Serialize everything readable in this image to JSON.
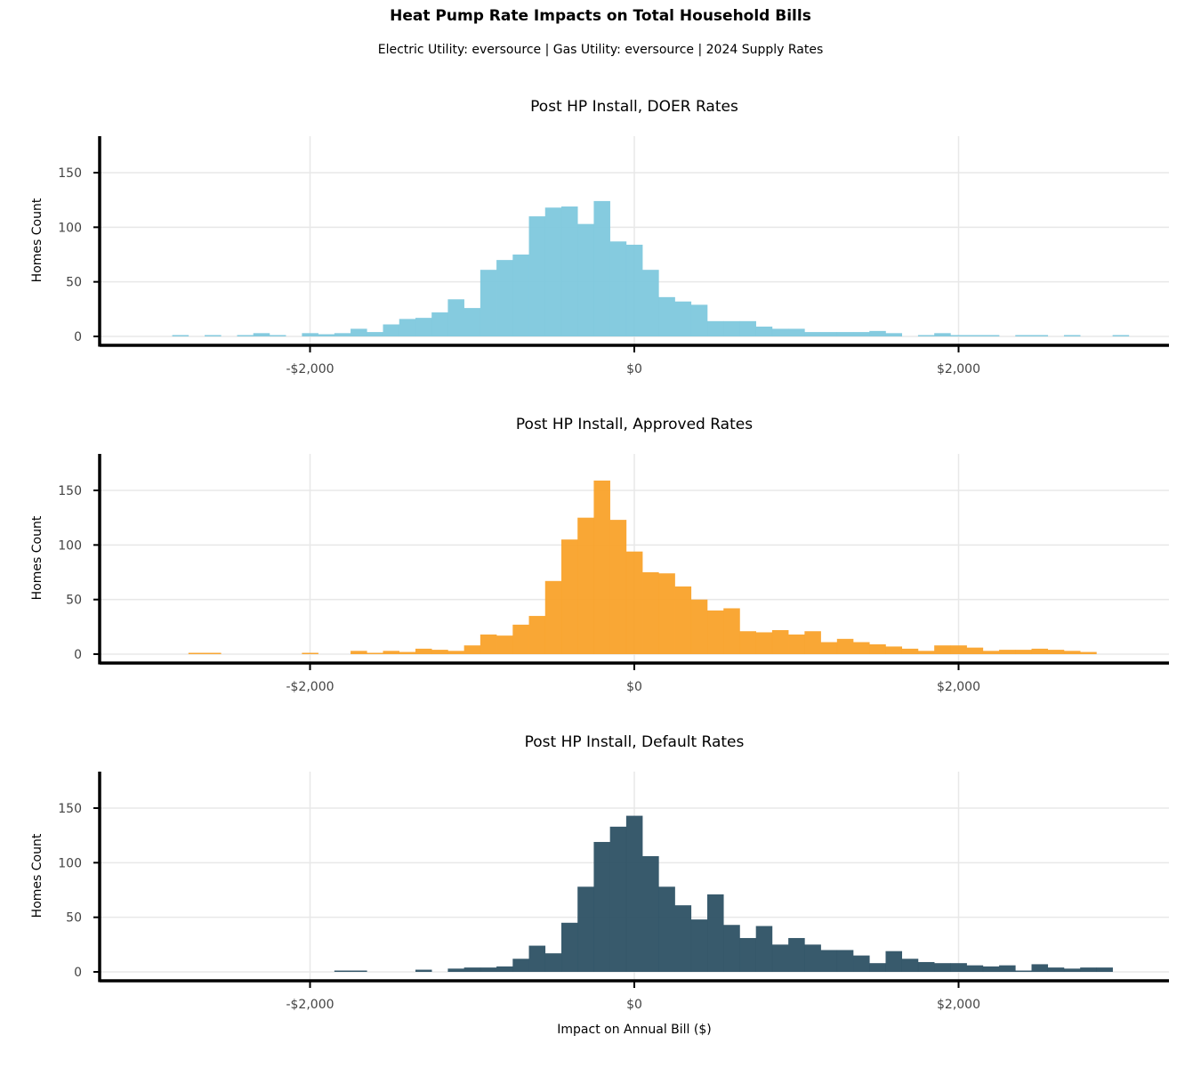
{
  "title": "Heat Pump Rate Impacts on Total Household Bills",
  "subtitle": "Electric Utility: eversource | Gas Utility: eversource | 2024 Supply Rates",
  "chart_data": {
    "type": "bar",
    "subtype": "histogram",
    "bin_width": 100,
    "xlabel": "Impact on Annual Bill ($)",
    "ylabel": "Homes Count",
    "xlim": [
      -3300,
      3300
    ],
    "ylim": [
      -8,
      182
    ],
    "x_ticks": [
      -2000,
      0,
      2000
    ],
    "x_tick_labels": [
      "-$2,000",
      "$0",
      "$2,000"
    ],
    "y_ticks": [
      0,
      50,
      100,
      150
    ],
    "y_tick_labels": [
      "0",
      "50",
      "100",
      "150"
    ],
    "panels": [
      {
        "name": "Post HP Install, DOER Rates",
        "color": "#7EC8DD",
        "series": [
          {
            "x": -2900,
            "y": 0
          },
          {
            "x": -2800,
            "y": 1
          },
          {
            "x": -2700,
            "y": 0
          },
          {
            "x": -2600,
            "y": 1
          },
          {
            "x": -2500,
            "y": 0
          },
          {
            "x": -2400,
            "y": 1
          },
          {
            "x": -2300,
            "y": 3
          },
          {
            "x": -2200,
            "y": 1
          },
          {
            "x": -2100,
            "y": 0
          },
          {
            "x": -2000,
            "y": 3
          },
          {
            "x": -1900,
            "y": 2
          },
          {
            "x": -1800,
            "y": 3
          },
          {
            "x": -1700,
            "y": 7
          },
          {
            "x": -1600,
            "y": 4
          },
          {
            "x": -1500,
            "y": 11
          },
          {
            "x": -1400,
            "y": 16
          },
          {
            "x": -1300,
            "y": 17
          },
          {
            "x": -1200,
            "y": 22
          },
          {
            "x": -1100,
            "y": 34
          },
          {
            "x": -1000,
            "y": 26
          },
          {
            "x": -900,
            "y": 61
          },
          {
            "x": -800,
            "y": 70
          },
          {
            "x": -700,
            "y": 75
          },
          {
            "x": -600,
            "y": 110
          },
          {
            "x": -500,
            "y": 118
          },
          {
            "x": -400,
            "y": 119
          },
          {
            "x": -300,
            "y": 103
          },
          {
            "x": -200,
            "y": 124
          },
          {
            "x": -100,
            "y": 87
          },
          {
            "x": 0,
            "y": 84
          },
          {
            "x": 100,
            "y": 61
          },
          {
            "x": 200,
            "y": 36
          },
          {
            "x": 300,
            "y": 32
          },
          {
            "x": 400,
            "y": 29
          },
          {
            "x": 500,
            "y": 14
          },
          {
            "x": 600,
            "y": 14
          },
          {
            "x": 700,
            "y": 14
          },
          {
            "x": 800,
            "y": 9
          },
          {
            "x": 900,
            "y": 7
          },
          {
            "x": 1000,
            "y": 7
          },
          {
            "x": 1100,
            "y": 4
          },
          {
            "x": 1200,
            "y": 4
          },
          {
            "x": 1300,
            "y": 4
          },
          {
            "x": 1400,
            "y": 4
          },
          {
            "x": 1500,
            "y": 5
          },
          {
            "x": 1600,
            "y": 3
          },
          {
            "x": 1700,
            "y": 0
          },
          {
            "x": 1800,
            "y": 1
          },
          {
            "x": 1900,
            "y": 3
          },
          {
            "x": 2000,
            "y": 1
          },
          {
            "x": 2100,
            "y": 1
          },
          {
            "x": 2200,
            "y": 1
          },
          {
            "x": 2300,
            "y": 0
          },
          {
            "x": 2400,
            "y": 1
          },
          {
            "x": 2500,
            "y": 1
          },
          {
            "x": 2600,
            "y": 0
          },
          {
            "x": 2700,
            "y": 1
          },
          {
            "x": 2800,
            "y": 0
          },
          {
            "x": 2900,
            "y": 0
          },
          {
            "x": 3000,
            "y": 1
          }
        ]
      },
      {
        "name": "Post HP Install, Approved Rates",
        "color": "#F9A22A",
        "series": [
          {
            "x": -2700,
            "y": 1
          },
          {
            "x": -2600,
            "y": 1
          },
          {
            "x": -2000,
            "y": 1
          },
          {
            "x": -1700,
            "y": 3
          },
          {
            "x": -1600,
            "y": 1
          },
          {
            "x": -1500,
            "y": 3
          },
          {
            "x": -1400,
            "y": 2
          },
          {
            "x": -1300,
            "y": 5
          },
          {
            "x": -1200,
            "y": 4
          },
          {
            "x": -1100,
            "y": 3
          },
          {
            "x": -1000,
            "y": 8
          },
          {
            "x": -900,
            "y": 18
          },
          {
            "x": -800,
            "y": 17
          },
          {
            "x": -700,
            "y": 27
          },
          {
            "x": -600,
            "y": 35
          },
          {
            "x": -500,
            "y": 67
          },
          {
            "x": -400,
            "y": 105
          },
          {
            "x": -300,
            "y": 125
          },
          {
            "x": -200,
            "y": 159
          },
          {
            "x": -100,
            "y": 123
          },
          {
            "x": 0,
            "y": 94
          },
          {
            "x": 100,
            "y": 75
          },
          {
            "x": 200,
            "y": 74
          },
          {
            "x": 300,
            "y": 62
          },
          {
            "x": 400,
            "y": 50
          },
          {
            "x": 500,
            "y": 40
          },
          {
            "x": 600,
            "y": 42
          },
          {
            "x": 700,
            "y": 21
          },
          {
            "x": 800,
            "y": 20
          },
          {
            "x": 900,
            "y": 22
          },
          {
            "x": 1000,
            "y": 18
          },
          {
            "x": 1100,
            "y": 21
          },
          {
            "x": 1200,
            "y": 11
          },
          {
            "x": 1300,
            "y": 14
          },
          {
            "x": 1400,
            "y": 11
          },
          {
            "x": 1500,
            "y": 9
          },
          {
            "x": 1600,
            "y": 7
          },
          {
            "x": 1700,
            "y": 5
          },
          {
            "x": 1800,
            "y": 3
          },
          {
            "x": 1900,
            "y": 8
          },
          {
            "x": 2000,
            "y": 8
          },
          {
            "x": 2100,
            "y": 6
          },
          {
            "x": 2200,
            "y": 3
          },
          {
            "x": 2300,
            "y": 4
          },
          {
            "x": 2400,
            "y": 4
          },
          {
            "x": 2500,
            "y": 5
          },
          {
            "x": 2600,
            "y": 4
          },
          {
            "x": 2700,
            "y": 3
          },
          {
            "x": 2800,
            "y": 2
          }
        ]
      },
      {
        "name": "Post HP Install, Default Rates",
        "color": "#2D5164",
        "series": [
          {
            "x": -1800,
            "y": 1
          },
          {
            "x": -1700,
            "y": 1
          },
          {
            "x": -1300,
            "y": 2
          },
          {
            "x": -1100,
            "y": 3
          },
          {
            "x": -1000,
            "y": 4
          },
          {
            "x": -900,
            "y": 4
          },
          {
            "x": -800,
            "y": 5
          },
          {
            "x": -700,
            "y": 12
          },
          {
            "x": -600,
            "y": 24
          },
          {
            "x": -500,
            "y": 17
          },
          {
            "x": -400,
            "y": 45
          },
          {
            "x": -300,
            "y": 78
          },
          {
            "x": -200,
            "y": 119
          },
          {
            "x": -100,
            "y": 133
          },
          {
            "x": 0,
            "y": 143
          },
          {
            "x": 100,
            "y": 106
          },
          {
            "x": 200,
            "y": 78
          },
          {
            "x": 300,
            "y": 61
          },
          {
            "x": 400,
            "y": 48
          },
          {
            "x": 500,
            "y": 71
          },
          {
            "x": 600,
            "y": 43
          },
          {
            "x": 700,
            "y": 31
          },
          {
            "x": 800,
            "y": 42
          },
          {
            "x": 900,
            "y": 25
          },
          {
            "x": 1000,
            "y": 31
          },
          {
            "x": 1100,
            "y": 25
          },
          {
            "x": 1200,
            "y": 20
          },
          {
            "x": 1300,
            "y": 20
          },
          {
            "x": 1400,
            "y": 15
          },
          {
            "x": 1500,
            "y": 8
          },
          {
            "x": 1600,
            "y": 19
          },
          {
            "x": 1700,
            "y": 12
          },
          {
            "x": 1800,
            "y": 9
          },
          {
            "x": 1900,
            "y": 8
          },
          {
            "x": 2000,
            "y": 8
          },
          {
            "x": 2100,
            "y": 6
          },
          {
            "x": 2200,
            "y": 5
          },
          {
            "x": 2300,
            "y": 6
          },
          {
            "x": 2400,
            "y": 1
          },
          {
            "x": 2500,
            "y": 7
          },
          {
            "x": 2600,
            "y": 4
          },
          {
            "x": 2700,
            "y": 3
          },
          {
            "x": 2800,
            "y": 4
          },
          {
            "x": 2900,
            "y": 4
          }
        ]
      }
    ]
  }
}
